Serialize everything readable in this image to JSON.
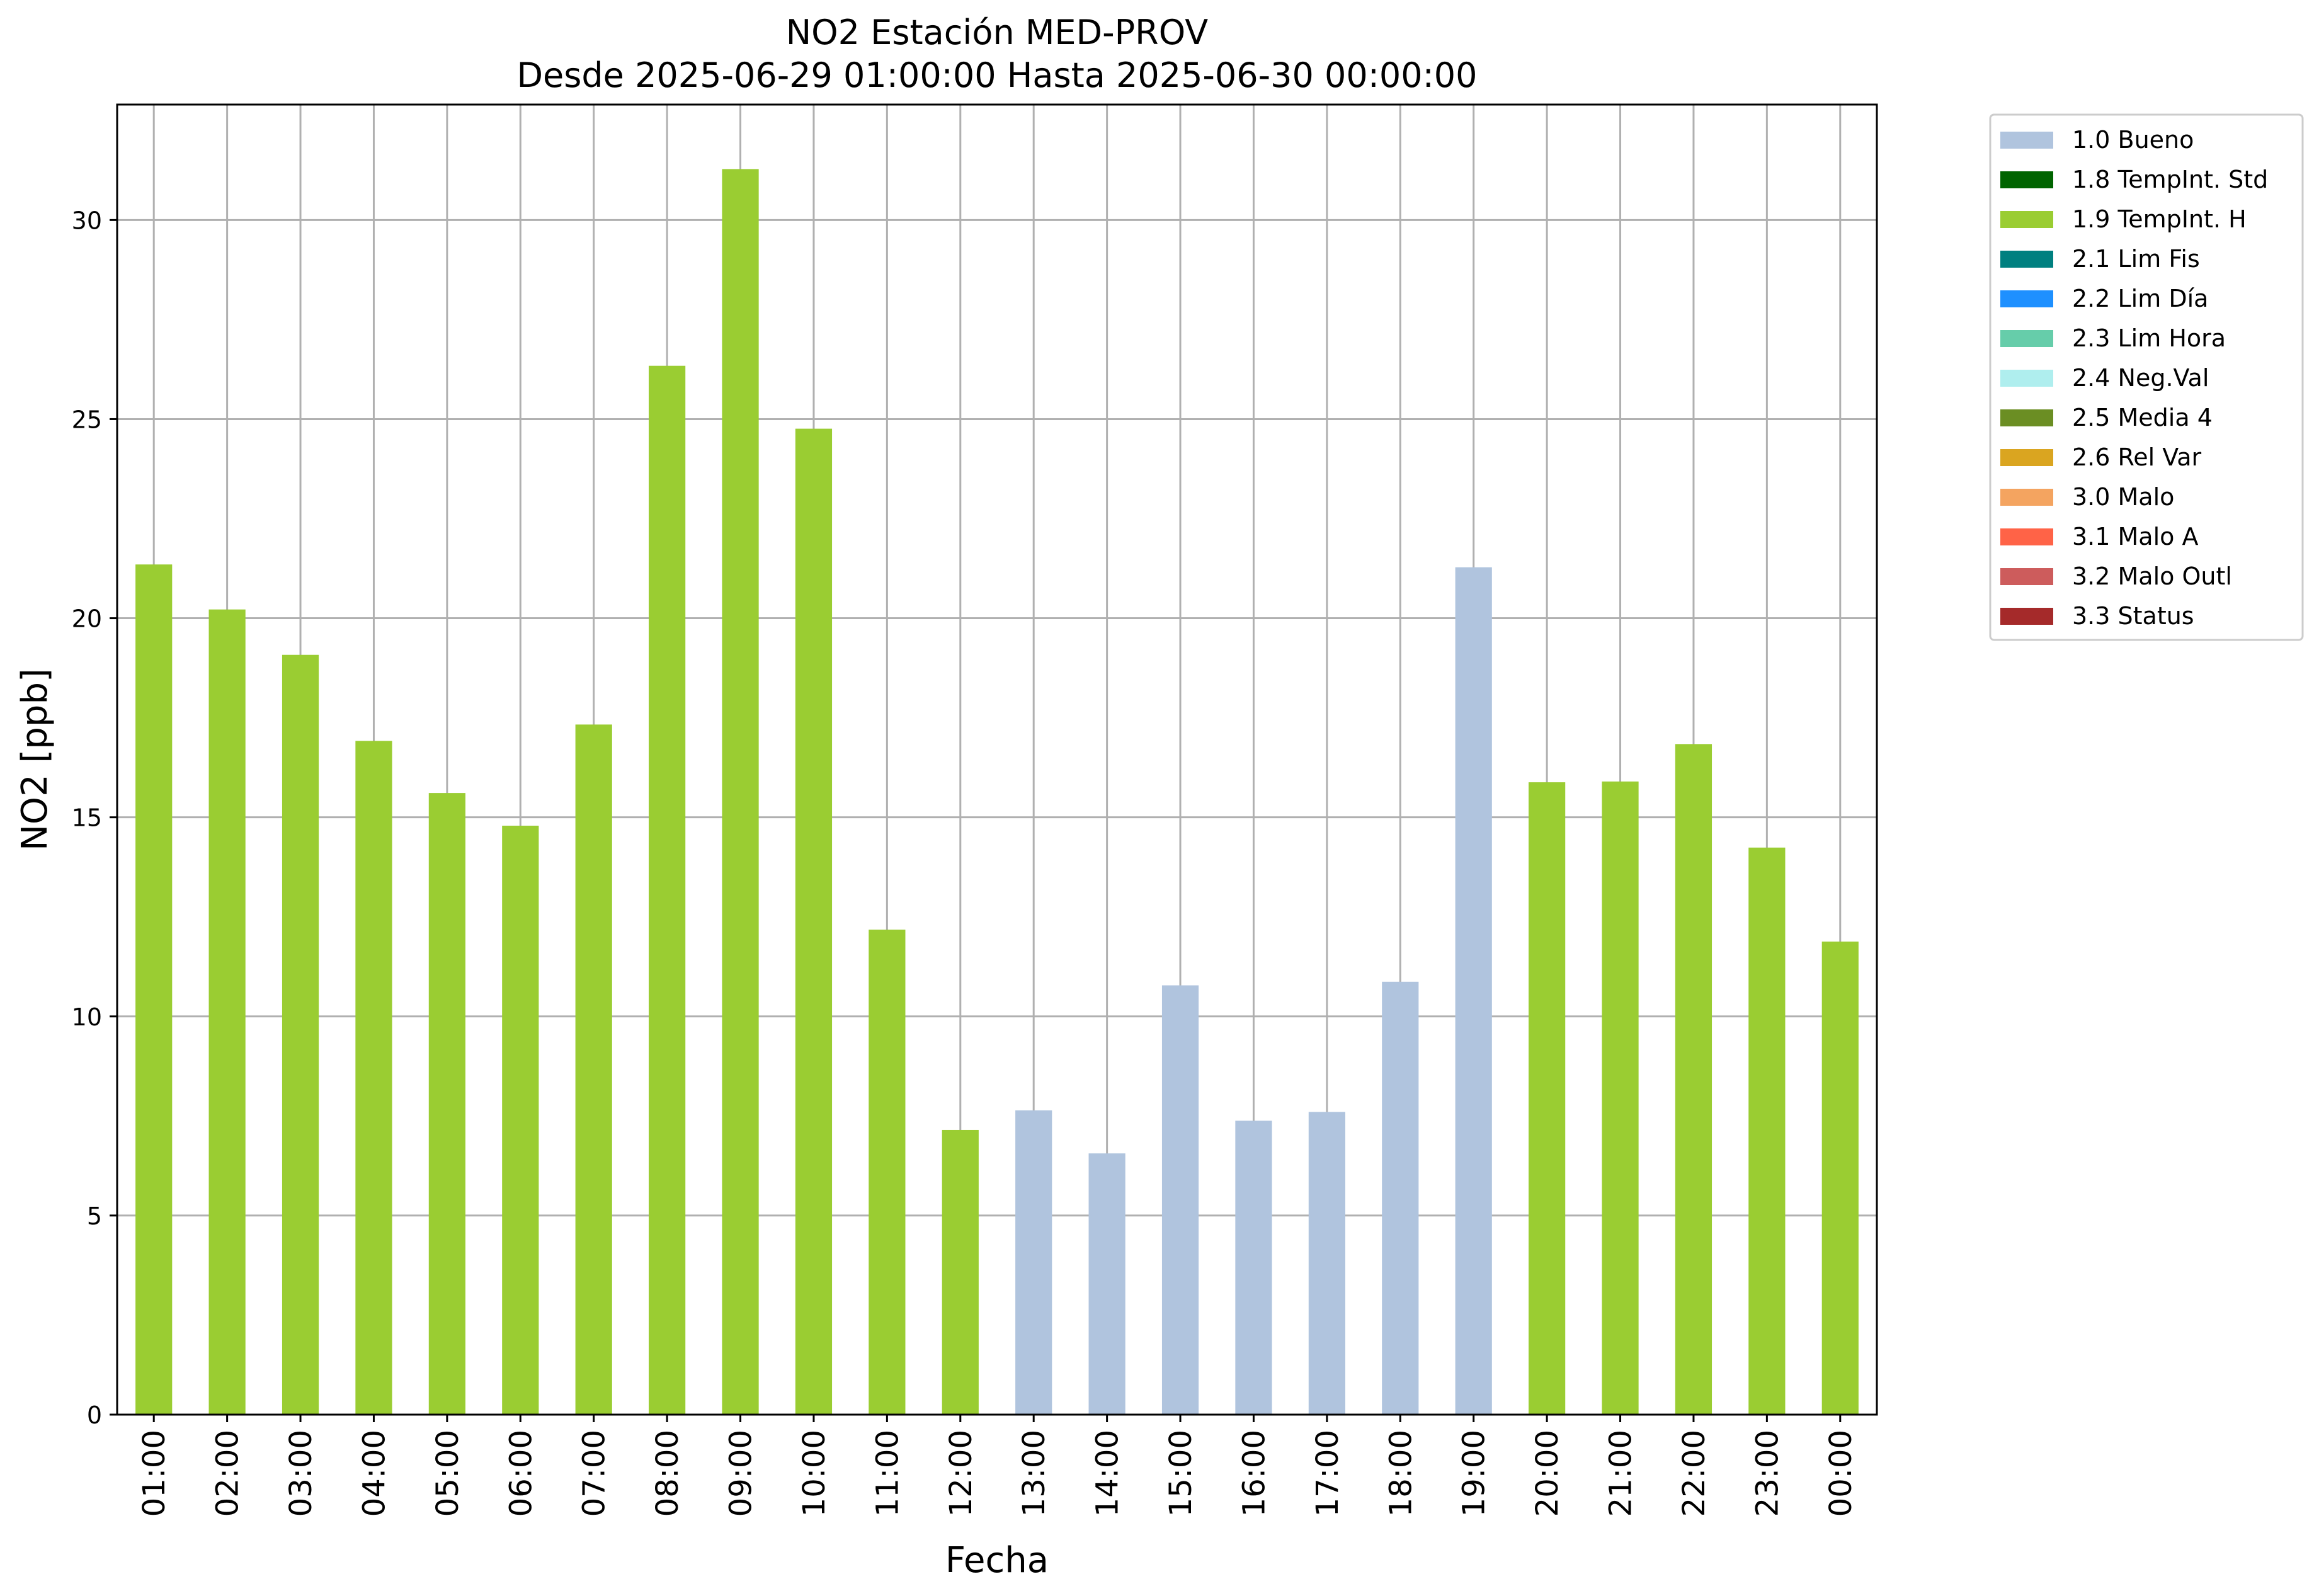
{
  "chart_data": {
    "type": "bar",
    "title": "NO2 Estación MED-PROV",
    "subtitle": "Desde 2025-06-29 01:00:00 Hasta 2025-06-30 00:00:00",
    "xlabel": "Fecha",
    "ylabel": "NO2 [ppb]",
    "ylim": [
      0,
      32.9
    ],
    "yticks": [
      0,
      5,
      10,
      15,
      20,
      25,
      30
    ],
    "grid": true,
    "legend_position": "outside top-right",
    "categories": [
      "01:00",
      "02:00",
      "03:00",
      "04:00",
      "05:00",
      "06:00",
      "07:00",
      "08:00",
      "09:00",
      "10:00",
      "11:00",
      "12:00",
      "13:00",
      "14:00",
      "15:00",
      "16:00",
      "17:00",
      "18:00",
      "19:00",
      "20:00",
      "21:00",
      "22:00",
      "23:00",
      "00:00"
    ],
    "values": [
      21.35,
      20.22,
      19.08,
      16.92,
      15.61,
      14.79,
      17.33,
      26.34,
      31.28,
      24.76,
      12.18,
      7.15,
      7.64,
      6.56,
      10.78,
      7.38,
      7.6,
      10.87,
      21.28,
      15.88,
      15.9,
      16.84,
      14.24,
      11.88
    ],
    "flags": [
      "1.9",
      "1.9",
      "1.9",
      "1.9",
      "1.9",
      "1.9",
      "1.9",
      "1.9",
      "1.9",
      "1.9",
      "1.9",
      "1.9",
      "1.0",
      "1.0",
      "1.0",
      "1.0",
      "1.0",
      "1.0",
      "1.0",
      "1.9",
      "1.9",
      "1.9",
      "1.9",
      "1.9"
    ],
    "legend": [
      {
        "code": "1.0",
        "label": "1.0 Bueno",
        "color": "#b0c4de"
      },
      {
        "code": "1.8",
        "label": "1.8 TempInt. Std",
        "color": "#006400"
      },
      {
        "code": "1.9",
        "label": "1.9 TempInt. H",
        "color": "#9acd32"
      },
      {
        "code": "2.1",
        "label": "2.1 Lim Fis",
        "color": "#008080"
      },
      {
        "code": "2.2",
        "label": "2.2 Lim Día",
        "color": "#1e90ff"
      },
      {
        "code": "2.3",
        "label": "2.3 Lim Hora",
        "color": "#66cdaa"
      },
      {
        "code": "2.4",
        "label": "2.4 Neg.Val",
        "color": "#afeeee"
      },
      {
        "code": "2.5",
        "label": "2.5 Media 4",
        "color": "#6b8e23"
      },
      {
        "code": "2.6",
        "label": "2.6 Rel Var",
        "color": "#daa520"
      },
      {
        "code": "3.0",
        "label": "3.0 Malo",
        "color": "#f4a460"
      },
      {
        "code": "3.1",
        "label": "3.1 Malo A",
        "color": "#ff6347"
      },
      {
        "code": "3.2",
        "label": "3.2 Malo Outl",
        "color": "#cd5c5c"
      },
      {
        "code": "3.3",
        "label": "3.3 Status",
        "color": "#a52a2a"
      }
    ]
  }
}
